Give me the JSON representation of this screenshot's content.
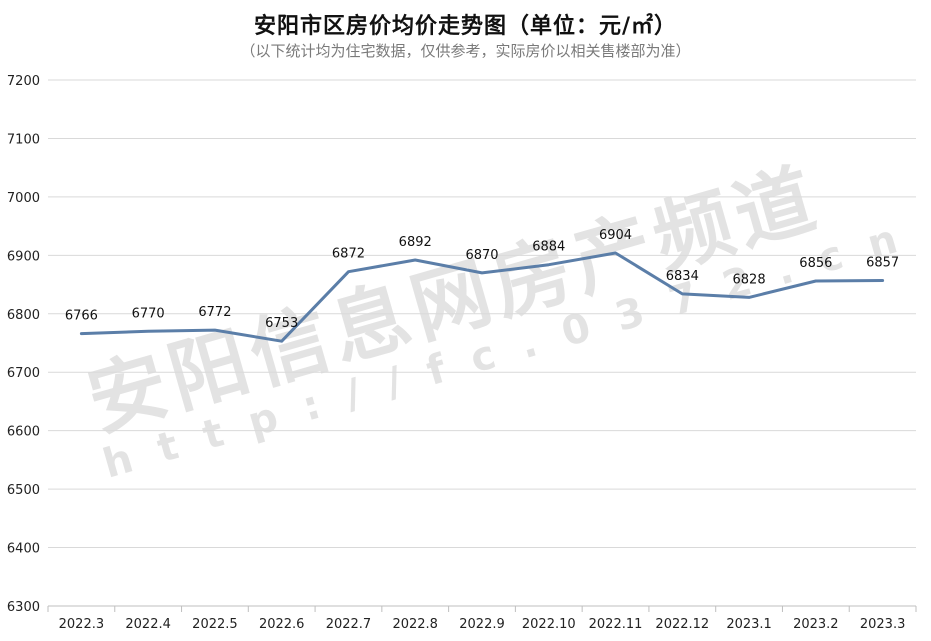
{
  "chart_data": {
    "type": "line",
    "title": "安阳市区房价均价走势图（单位：元/㎡）",
    "subtitle": "（以下统计均为住宅数据，仅供参考，实际房价以相关售楼部为准）",
    "categories": [
      "2022.3",
      "2022.4",
      "2022.5",
      "2022.6",
      "2022.7",
      "2022.8",
      "2022.9",
      "2022.10",
      "2022.11",
      "2022.12",
      "2023.1",
      "2023.2",
      "2023.3"
    ],
    "series": [
      {
        "values": [
          6766,
          6770,
          6772,
          6753,
          6872,
          6892,
          6870,
          6884,
          6904,
          6834,
          6828,
          6856,
          6857
        ]
      }
    ],
    "ylim": [
      6300,
      7200
    ],
    "yticks": [
      "6300",
      "6400",
      "6500",
      "6600",
      "6700",
      "6800",
      "6900",
      "7000",
      "7100",
      "7200"
    ],
    "grid": true,
    "legend": "none",
    "line_color": "#5b7ea8"
  },
  "watermark": {
    "main": "安阳信息网房产频道",
    "url": "http://fc.0372.cn"
  }
}
